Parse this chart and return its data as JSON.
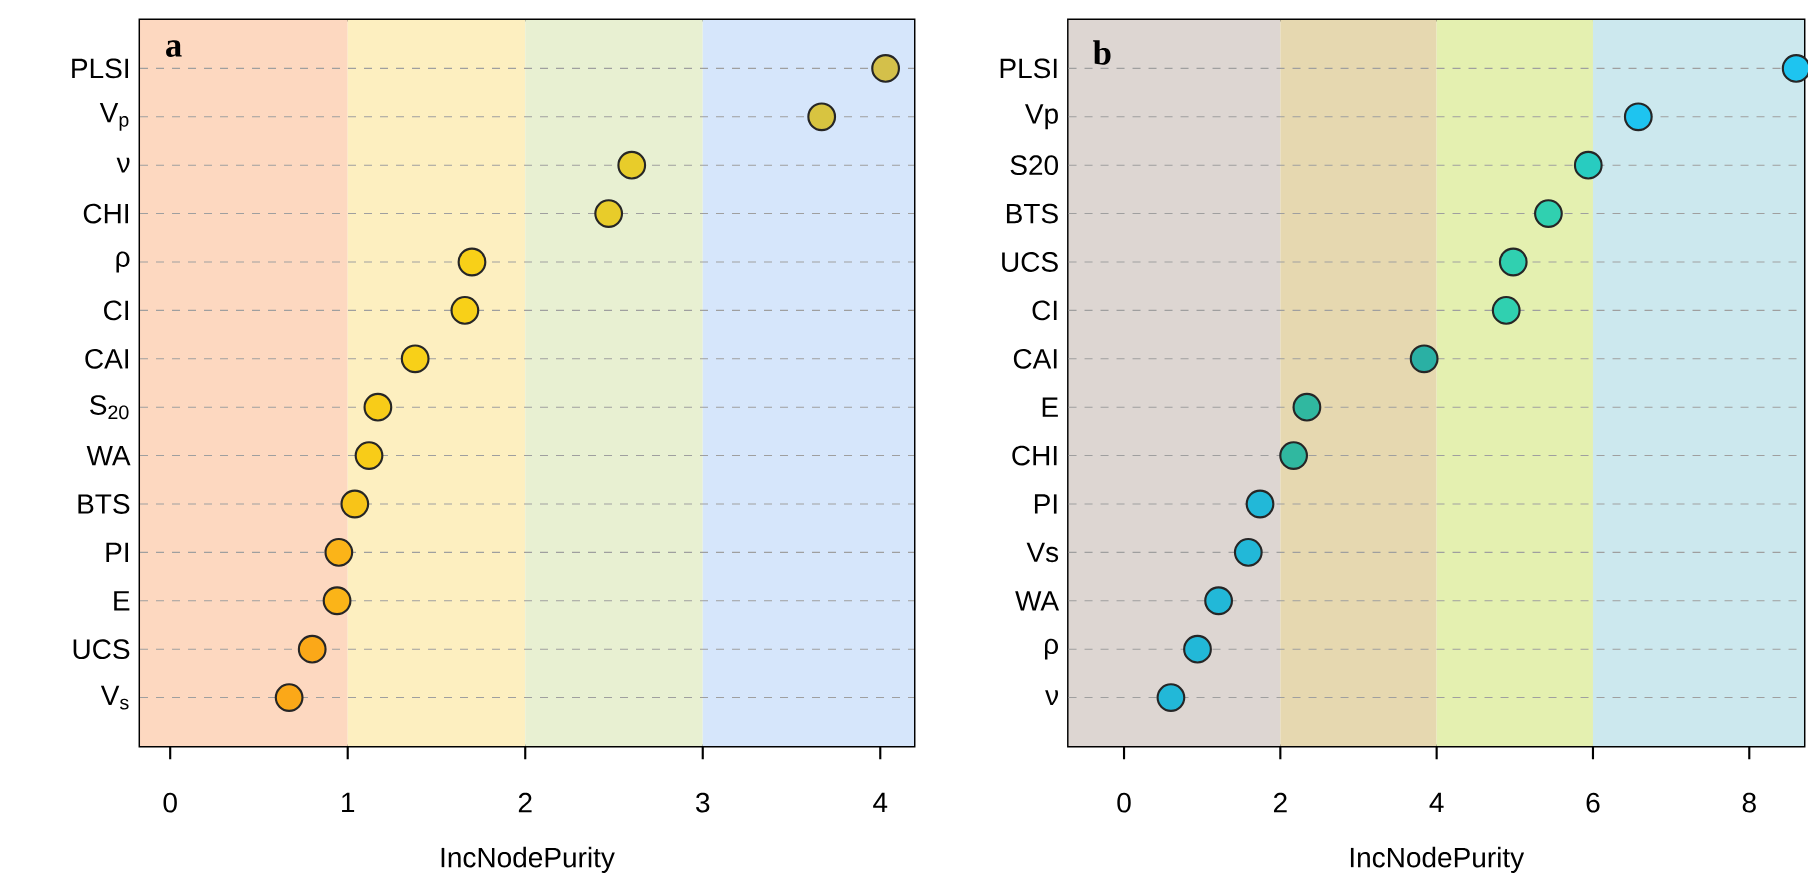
{
  "chart_data": [
    {
      "type": "scatter",
      "orientation": "horizontal",
      "marker": "circle",
      "grid": "y",
      "xlabel": "IncNodePurity",
      "annotations": [
        "a"
      ],
      "categories": [
        "PLSI",
        "V$_{p}$",
        "ν",
        "CHI",
        "ρ",
        "CI",
        "CAI",
        "S$_{20}$",
        "WA",
        "BTS",
        "PI",
        "E",
        "UCS",
        "V$_{s}$"
      ],
      "values": [
        4.03,
        3.67,
        2.6,
        2.47,
        1.7,
        1.66,
        1.38,
        1.17,
        1.12,
        1.04,
        0.95,
        0.94,
        0.8,
        0.67
      ],
      "colors": [
        "#d4c04a",
        "#d8c440",
        "#e8cc2a",
        "#e8cc2a",
        "#f8d018",
        "#f8d018",
        "#f8d018",
        "#f8cc18",
        "#f8cc18",
        "#f8c418",
        "#fbb418",
        "#fbb418",
        "#fba818",
        "#fba818"
      ],
      "xlim": [
        -0.17,
        4.19
      ],
      "xticks": [
        0,
        1,
        2,
        3,
        4
      ],
      "bands": [
        {
          "axis": "x",
          "from": -0.17,
          "to": 1,
          "color": "#fdd8c0"
        },
        {
          "axis": "x",
          "from": 1,
          "to": 2,
          "color": "#fdefc0"
        },
        {
          "axis": "x",
          "from": 2,
          "to": 3,
          "color": "#e8f0d2"
        },
        {
          "axis": "x",
          "from": 3,
          "to": 4.19,
          "color": "#d6e6fb"
        }
      ]
    },
    {
      "type": "scatter",
      "orientation": "horizontal",
      "marker": "circle",
      "grid": "y",
      "xlabel": "IncNodePurity",
      "annotations": [
        "b"
      ],
      "categories": [
        "PLSI",
        "Vp",
        "S20",
        "BTS",
        "UCS",
        "CI",
        "CAI",
        "E",
        "CHI",
        "PI",
        "Vs",
        "WA",
        "ρ",
        "ν"
      ],
      "values": [
        8.6,
        6.58,
        5.94,
        5.43,
        4.98,
        4.89,
        3.84,
        2.34,
        2.17,
        1.74,
        1.59,
        1.21,
        0.94,
        0.6
      ],
      "colors": [
        "#1ec4f0",
        "#1ec4f0",
        "#28ccc0",
        "#30d0b0",
        "#30d0b0",
        "#30d0b0",
        "#2ab0a4",
        "#30b8a0",
        "#30b8a0",
        "#22b8d8",
        "#22b8d8",
        "#22b8d8",
        "#22b8d8",
        "#22b8d8"
      ],
      "xlim": [
        -0.71,
        8.7
      ],
      "xticks": [
        0,
        2,
        4,
        6,
        8
      ],
      "bands": [
        {
          "axis": "x",
          "from": -0.71,
          "to": 2,
          "color": "#ddd6d2"
        },
        {
          "axis": "x",
          "from": 2,
          "to": 4,
          "color": "#e6d8b0"
        },
        {
          "axis": "x",
          "from": 4,
          "to": 6,
          "color": "#e4f0b0"
        },
        {
          "axis": "x",
          "from": 6,
          "to": 8.7,
          "color": "#cce8ee"
        }
      ]
    }
  ]
}
